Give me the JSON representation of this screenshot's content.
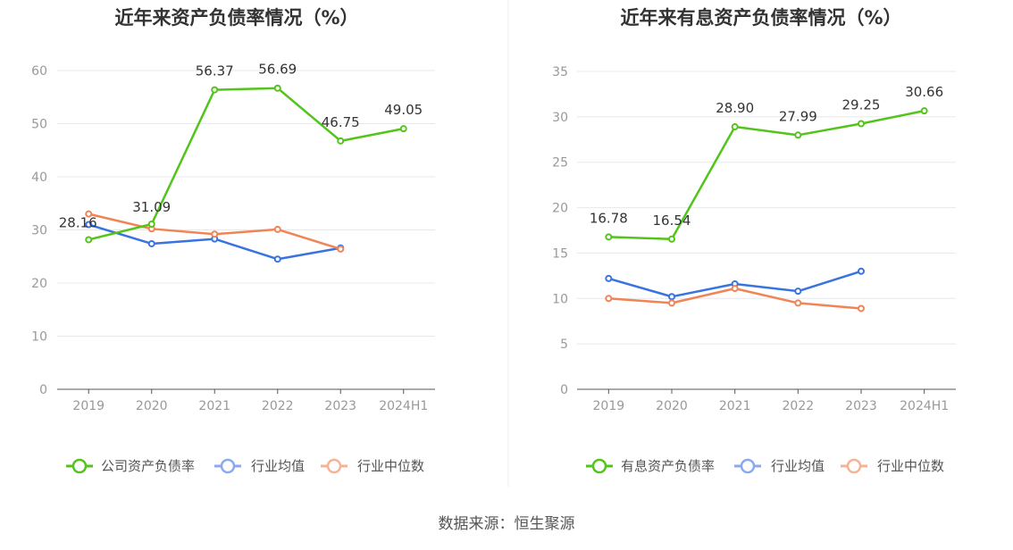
{
  "source": "数据来源：恒生聚源",
  "colors": {
    "green": "#52c41a",
    "blue": "#3873e0",
    "orange": "#f08455",
    "blue_legend": "#8aaaf0",
    "orange_legend": "#f5b294",
    "grid": "#e6e8ee",
    "axis": "#555555"
  },
  "chart_data": [
    {
      "type": "line",
      "title": "近年来资产负债率情况（%）",
      "categories": [
        "2019",
        "2020",
        "2021",
        "2022",
        "2023",
        "2024H1"
      ],
      "ylim": [
        0,
        60
      ],
      "yticks": [
        0,
        10,
        20,
        30,
        40,
        50,
        60
      ],
      "grid": true,
      "legend_position": "bottom",
      "series": [
        {
          "name": "公司资产负债率",
          "color": "#52c41a",
          "values": [
            28.16,
            31.09,
            56.37,
            56.69,
            46.75,
            49.05
          ],
          "labels": [
            "28.16",
            "31.09",
            "56.37",
            "56.69",
            "46.75",
            "49.05"
          ]
        },
        {
          "name": "行业均值",
          "color": "#3873e0",
          "values": [
            31.0,
            27.4,
            28.3,
            24.5,
            26.6,
            null
          ]
        },
        {
          "name": "行业中位数",
          "color": "#f08455",
          "values": [
            33.0,
            30.2,
            29.2,
            30.1,
            26.4,
            null
          ]
        }
      ]
    },
    {
      "type": "line",
      "title": "近年来有息资产负债率情况（%）",
      "categories": [
        "2019",
        "2020",
        "2021",
        "2022",
        "2023",
        "2024H1"
      ],
      "ylim": [
        0,
        35
      ],
      "yticks": [
        0,
        5,
        10,
        15,
        20,
        25,
        30,
        35
      ],
      "grid": true,
      "legend_position": "bottom",
      "series": [
        {
          "name": "有息资产负债率",
          "color": "#52c41a",
          "values": [
            16.78,
            16.54,
            28.9,
            27.99,
            29.25,
            30.66
          ],
          "labels": [
            "16.78",
            "16.54",
            "28.90",
            "27.99",
            "29.25",
            "30.66"
          ]
        },
        {
          "name": "行业均值",
          "color": "#3873e0",
          "values": [
            12.2,
            10.2,
            11.6,
            10.8,
            13.0,
            null
          ]
        },
        {
          "name": "行业中位数",
          "color": "#f08455",
          "values": [
            10.0,
            9.5,
            11.1,
            9.5,
            8.9,
            null
          ]
        }
      ]
    }
  ]
}
